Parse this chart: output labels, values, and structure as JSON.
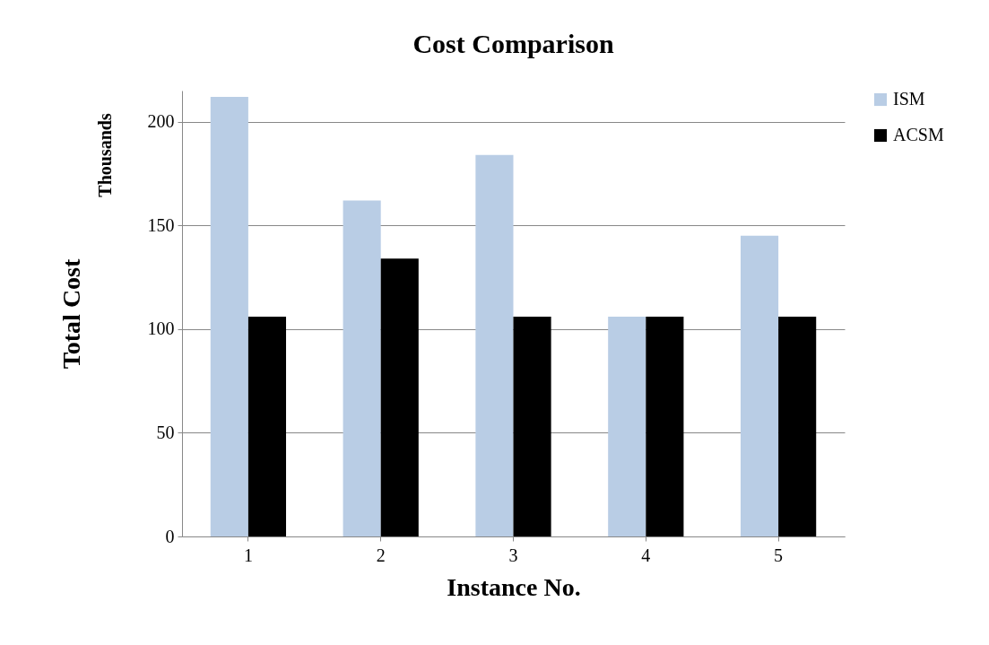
{
  "chart_data": {
    "type": "bar",
    "title": "Cost Comparison",
    "xlabel": "Instance No.",
    "ylabel": "Total Cost",
    "annotations": [
      "Thousands"
    ],
    "categories": [
      "1",
      "2",
      "3",
      "4",
      "5"
    ],
    "series": [
      {
        "name": "ISM",
        "color": "#b9cde5",
        "values": [
          212,
          162,
          184,
          106,
          145
        ]
      },
      {
        "name": "ACSM",
        "color": "#000000",
        "values": [
          106,
          134,
          106,
          106,
          106
        ]
      }
    ],
    "ylim": [
      0,
      215
    ],
    "yticks": [
      0,
      50,
      100,
      150,
      200
    ],
    "grid": "y",
    "legend": "right"
  }
}
